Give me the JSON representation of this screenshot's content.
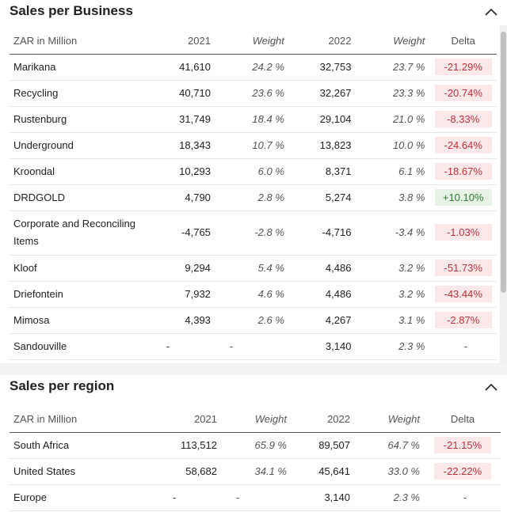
{
  "business": {
    "title": "Sales per Business",
    "columns": [
      "ZAR in Million",
      "2021",
      "Weight",
      "2022",
      "Weight",
      "Delta"
    ],
    "rows": [
      {
        "name": "Marikana",
        "v2021": "41,610",
        "w2021": "24.2 %",
        "v2022": "32,753",
        "w2022": "23.7 %",
        "delta": "-21.29%",
        "dir": "neg"
      },
      {
        "name": "Recycling",
        "v2021": "40,710",
        "w2021": "23.6 %",
        "v2022": "32,267",
        "w2022": "23.3 %",
        "delta": "-20.74%",
        "dir": "neg"
      },
      {
        "name": "Rustenburg",
        "v2021": "31,749",
        "w2021": "18.4 %",
        "v2022": "29,104",
        "w2022": "21.0 %",
        "delta": "-8.33%",
        "dir": "neg"
      },
      {
        "name": "Underground",
        "v2021": "18,343",
        "w2021": "10.7 %",
        "v2022": "13,823",
        "w2022": "10.0 %",
        "delta": "-24.64%",
        "dir": "neg"
      },
      {
        "name": "Kroondal",
        "v2021": "10,293",
        "w2021": "6.0 %",
        "v2022": "8,371",
        "w2022": "6.1 %",
        "delta": "-18.67%",
        "dir": "neg"
      },
      {
        "name": "DRDGOLD",
        "v2021": "4,790",
        "w2021": "2.8 %",
        "v2022": "5,274",
        "w2022": "3.8 %",
        "delta": "+10.10%",
        "dir": "pos"
      },
      {
        "name": "Corporate and Reconciling Items",
        "v2021": "-4,765",
        "w2021": "-2.8 %",
        "v2022": "-4,716",
        "w2022": "-3.4 %",
        "delta": "-1.03%",
        "dir": "neg"
      },
      {
        "name": "Kloof",
        "v2021": "9,294",
        "w2021": "5.4 %",
        "v2022": "4,486",
        "w2022": "3.2 %",
        "delta": "-51.73%",
        "dir": "neg"
      },
      {
        "name": "Driefontein",
        "v2021": "7,932",
        "w2021": "4.6 %",
        "v2022": "4,486",
        "w2022": "3.2 %",
        "delta": "-43.44%",
        "dir": "neg"
      },
      {
        "name": "Mimosa",
        "v2021": "4,393",
        "w2021": "2.6 %",
        "v2022": "4,267",
        "w2022": "3.1 %",
        "delta": "-2.87%",
        "dir": "neg"
      },
      {
        "name": "Sandouville",
        "v2021": "-",
        "w2021": "-",
        "v2022": "3,140",
        "w2022": "2.3 %",
        "delta": "-",
        "dir": "none"
      }
    ]
  },
  "region": {
    "title": "Sales per region",
    "columns": [
      "ZAR in Million",
      "2021",
      "Weight",
      "2022",
      "Weight",
      "Delta"
    ],
    "rows": [
      {
        "name": "South Africa",
        "v2021": "113,512",
        "w2021": "65.9 %",
        "v2022": "89,507",
        "w2022": "64.7 %",
        "delta": "-21.15%",
        "dir": "neg"
      },
      {
        "name": "United States",
        "v2021": "58,682",
        "w2021": "34.1 %",
        "v2022": "45,641",
        "w2022": "33.0 %",
        "delta": "-22.22%",
        "dir": "neg"
      },
      {
        "name": "Europe",
        "v2021": "-",
        "w2021": "-",
        "v2022": "3,140",
        "w2022": "2.3 %",
        "delta": "-",
        "dir": "none"
      }
    ]
  },
  "icons": {
    "collapse": "chevron-up-icon"
  },
  "colors": {
    "negative_bg": "#fbe9ea",
    "negative_text": "#c0303a",
    "positive_bg": "#e6f3e6",
    "positive_text": "#2f7a2f"
  }
}
